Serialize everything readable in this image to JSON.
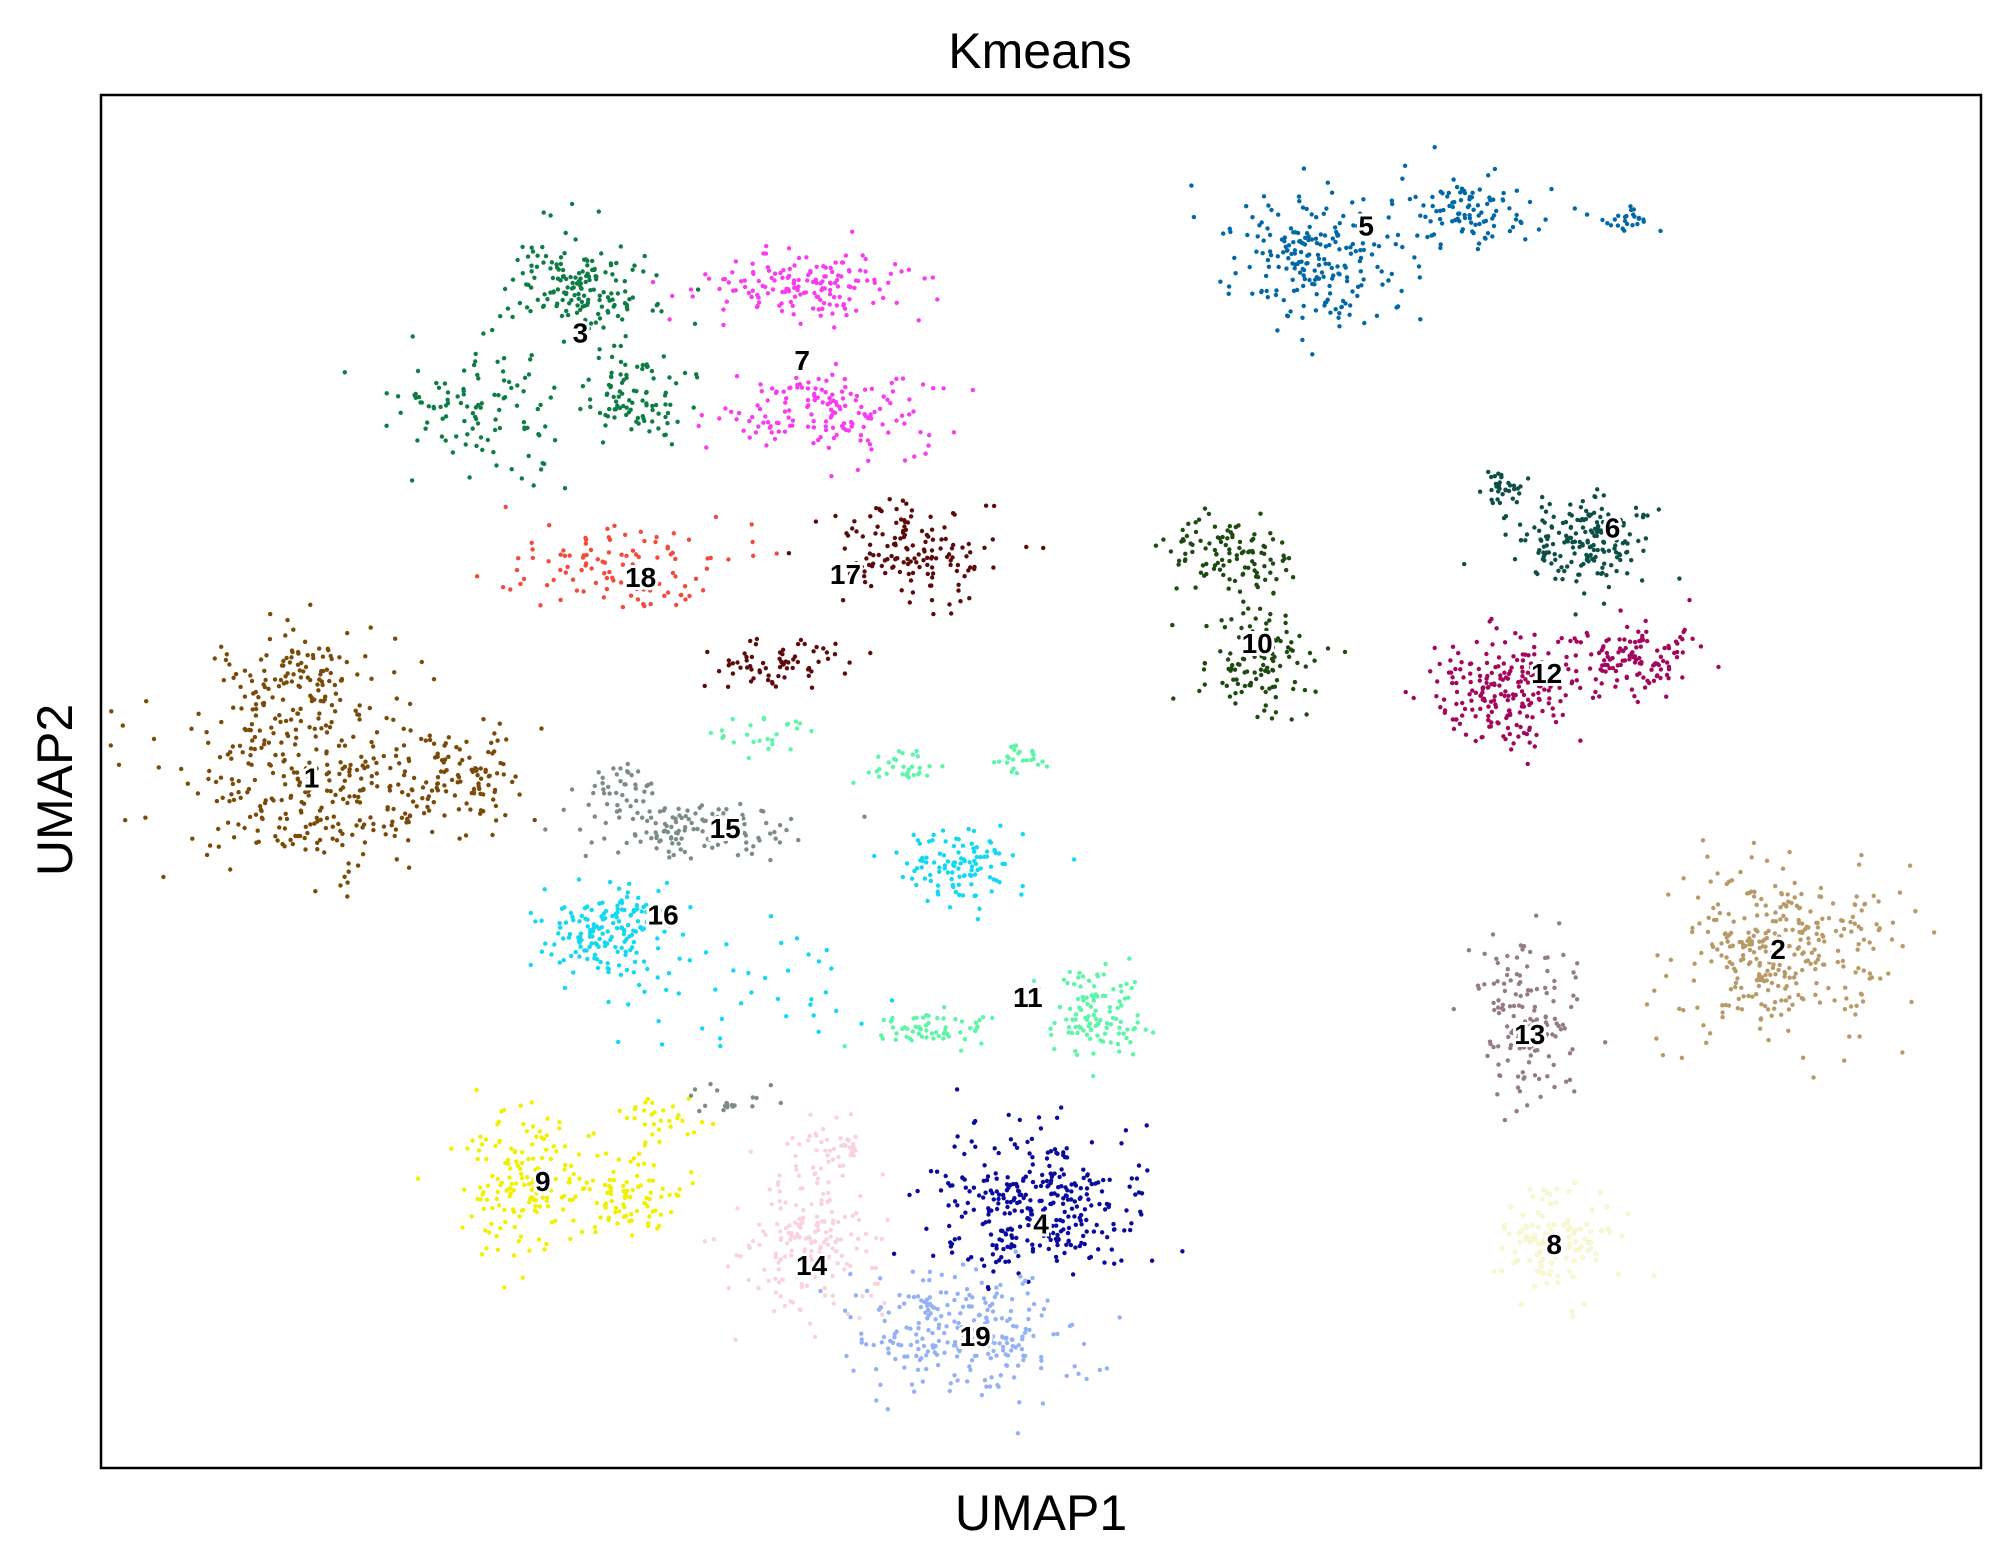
{
  "chart_data": {
    "type": "scatter",
    "title": "Kmeans",
    "xlabel": "UMAP1",
    "ylabel": "UMAP2",
    "xlim": [
      0,
      100
    ],
    "ylim": [
      0,
      100
    ],
    "grid": false,
    "legend": "on data",
    "clusters": [
      {
        "label": "1",
        "color": "#7A4A08",
        "blobs": [
          {
            "cx": 11.3,
            "cy": 49.8,
            "sx": 5.5,
            "sy": 4.2,
            "n": 330
          },
          {
            "cx": 10.5,
            "cy": 57.5,
            "sx": 3.0,
            "sy": 3.0,
            "n": 120
          },
          {
            "cx": 19.5,
            "cy": 50.5,
            "sx": 2.0,
            "sy": 2.2,
            "n": 80
          }
        ]
      },
      {
        "label": "2",
        "color": "#B89A68",
        "blobs": [
          {
            "cx": 89.2,
            "cy": 37.5,
            "sx": 3.8,
            "sy": 4.2,
            "n": 330
          }
        ]
      },
      {
        "label": "3",
        "color": "#0E7D45",
        "blobs": [
          {
            "cx": 25.5,
            "cy": 86.0,
            "sx": 2.6,
            "sy": 2.6,
            "n": 170
          },
          {
            "cx": 28.5,
            "cy": 77.8,
            "sx": 2.0,
            "sy": 2.0,
            "n": 90
          },
          {
            "cx": 20.5,
            "cy": 77.0,
            "sx": 3.2,
            "sy": 3.5,
            "n": 110
          }
        ]
      },
      {
        "label": "4",
        "color": "#0A0A9E",
        "blobs": [
          {
            "cx": 50.0,
            "cy": 19.0,
            "sx": 3.8,
            "sy": 3.5,
            "n": 330
          }
        ]
      },
      {
        "label": "5",
        "color": "#0068A6",
        "blobs": [
          {
            "cx": 64.5,
            "cy": 88.0,
            "sx": 3.2,
            "sy": 3.2,
            "n": 220
          },
          {
            "cx": 73.0,
            "cy": 91.5,
            "sx": 2.3,
            "sy": 1.8,
            "n": 100
          },
          {
            "cx": 81.0,
            "cy": 91.0,
            "sx": 1.0,
            "sy": 0.6,
            "n": 25
          }
        ]
      },
      {
        "label": "6",
        "color": "#0D4F47",
        "blobs": [
          {
            "cx": 79.0,
            "cy": 67.5,
            "sx": 2.5,
            "sy": 2.3,
            "n": 190
          },
          {
            "cx": 74.5,
            "cy": 71.3,
            "sx": 0.9,
            "sy": 0.7,
            "n": 30
          }
        ]
      },
      {
        "label": "7",
        "color": "#F83CF0",
        "blobs": [
          {
            "cx": 38.0,
            "cy": 86.0,
            "sx": 3.8,
            "sy": 1.6,
            "n": 160
          },
          {
            "cx": 38.5,
            "cy": 76.8,
            "sx": 3.8,
            "sy": 2.0,
            "n": 160
          }
        ]
      },
      {
        "label": "8",
        "color": "#FAFAD2",
        "blobs": [
          {
            "cx": 77.5,
            "cy": 16.5,
            "sx": 2.0,
            "sy": 2.6,
            "n": 110
          }
        ]
      },
      {
        "label": "9",
        "color": "#F0F000",
        "blobs": [
          {
            "cx": 22.5,
            "cy": 21.0,
            "sx": 2.2,
            "sy": 3.4,
            "n": 160
          },
          {
            "cx": 28.3,
            "cy": 20.0,
            "sx": 1.8,
            "sy": 1.8,
            "n": 90
          },
          {
            "cx": 30.0,
            "cy": 25.5,
            "sx": 1.8,
            "sy": 1.3,
            "n": 30
          }
        ]
      },
      {
        "label": "10",
        "color": "#1E4A12",
        "blobs": [
          {
            "cx": 60.0,
            "cy": 66.5,
            "sx": 2.5,
            "sy": 1.7,
            "n": 110
          },
          {
            "cx": 61.5,
            "cy": 58.5,
            "sx": 2.2,
            "sy": 2.4,
            "n": 120
          }
        ]
      },
      {
        "label": "11",
        "color": "#5EF5A8",
        "blobs": [
          {
            "cx": 53.0,
            "cy": 33.0,
            "sx": 1.6,
            "sy": 2.2,
            "n": 110
          },
          {
            "cx": 44.5,
            "cy": 32.0,
            "sx": 2.2,
            "sy": 1.0,
            "n": 60
          },
          {
            "cx": 42.5,
            "cy": 51.0,
            "sx": 1.3,
            "sy": 1.0,
            "n": 30
          },
          {
            "cx": 49.0,
            "cy": 51.5,
            "sx": 1.3,
            "sy": 0.8,
            "n": 25
          },
          {
            "cx": 35.0,
            "cy": 53.5,
            "sx": 1.6,
            "sy": 1.2,
            "n": 25
          }
        ]
      },
      {
        "label": "12",
        "color": "#A3075C",
        "blobs": [
          {
            "cx": 74.5,
            "cy": 56.5,
            "sx": 2.6,
            "sy": 2.8,
            "n": 200
          },
          {
            "cx": 81.5,
            "cy": 59.0,
            "sx": 2.4,
            "sy": 1.8,
            "n": 130
          }
        ]
      },
      {
        "label": "13",
        "color": "#957B85",
        "blobs": [
          {
            "cx": 76.0,
            "cy": 33.0,
            "sx": 2.0,
            "sy": 4.0,
            "n": 150
          }
        ]
      },
      {
        "label": "14",
        "color": "#F9D2DE",
        "blobs": [
          {
            "cx": 37.5,
            "cy": 16.0,
            "sx": 2.6,
            "sy": 3.2,
            "n": 180
          },
          {
            "cx": 38.5,
            "cy": 23.0,
            "sx": 1.5,
            "sy": 1.6,
            "n": 50
          }
        ]
      },
      {
        "label": "15",
        "color": "#7B8C85",
        "blobs": [
          {
            "cx": 32.0,
            "cy": 46.5,
            "sx": 3.8,
            "sy": 1.3,
            "n": 130
          },
          {
            "cx": 27.5,
            "cy": 49.5,
            "sx": 1.2,
            "sy": 1.2,
            "n": 35
          },
          {
            "cx": 33.5,
            "cy": 27.0,
            "sx": 1.2,
            "sy": 1.2,
            "n": 20
          }
        ]
      },
      {
        "label": "16",
        "color": "#12D8F2",
        "blobs": [
          {
            "cx": 27.0,
            "cy": 39.0,
            "sx": 2.5,
            "sy": 2.3,
            "n": 170
          },
          {
            "cx": 45.5,
            "cy": 44.0,
            "sx": 2.2,
            "sy": 1.7,
            "n": 110
          },
          {
            "cx": 34.0,
            "cy": 35.0,
            "sx": 4.5,
            "sy": 3.5,
            "n": 40
          }
        ]
      },
      {
        "label": "17",
        "color": "#5C0A0A",
        "blobs": [
          {
            "cx": 43.0,
            "cy": 66.8,
            "sx": 2.8,
            "sy": 2.3,
            "n": 150
          },
          {
            "cx": 36.0,
            "cy": 58.5,
            "sx": 2.6,
            "sy": 1.3,
            "n": 70
          }
        ]
      },
      {
        "label": "18",
        "color": "#F24A3C",
        "blobs": [
          {
            "cx": 28.0,
            "cy": 65.5,
            "sx": 3.8,
            "sy": 2.2,
            "n": 110
          }
        ]
      },
      {
        "label": "19",
        "color": "#94B1F5",
        "blobs": [
          {
            "cx": 46.0,
            "cy": 10.0,
            "sx": 3.5,
            "sy": 3.0,
            "n": 260
          }
        ]
      }
    ],
    "labels": [
      {
        "text": "1",
        "x": 11.2,
        "y": 50.3
      },
      {
        "text": "2",
        "x": 89.2,
        "y": 37.8
      },
      {
        "text": "3",
        "x": 25.5,
        "y": 82.7
      },
      {
        "text": "4",
        "x": 50.0,
        "y": 17.8
      },
      {
        "text": "5",
        "x": 67.3,
        "y": 90.5
      },
      {
        "text": "6",
        "x": 80.4,
        "y": 68.5
      },
      {
        "text": "7",
        "x": 37.3,
        "y": 80.7
      },
      {
        "text": "8",
        "x": 77.3,
        "y": 16.3
      },
      {
        "text": "9",
        "x": 23.5,
        "y": 20.9
      },
      {
        "text": "10",
        "x": 61.5,
        "y": 60.1
      },
      {
        "text": "11",
        "x": 49.3,
        "y": 34.3
      },
      {
        "text": "12",
        "x": 76.9,
        "y": 57.9
      },
      {
        "text": "13",
        "x": 76.0,
        "y": 31.6
      },
      {
        "text": "14",
        "x": 37.8,
        "y": 14.8
      },
      {
        "text": "15",
        "x": 33.2,
        "y": 46.6
      },
      {
        "text": "16",
        "x": 29.9,
        "y": 40.3
      },
      {
        "text": "17",
        "x": 39.6,
        "y": 65.1
      },
      {
        "text": "18",
        "x": 28.7,
        "y": 64.9
      },
      {
        "text": "19",
        "x": 46.5,
        "y": 9.6
      }
    ]
  }
}
